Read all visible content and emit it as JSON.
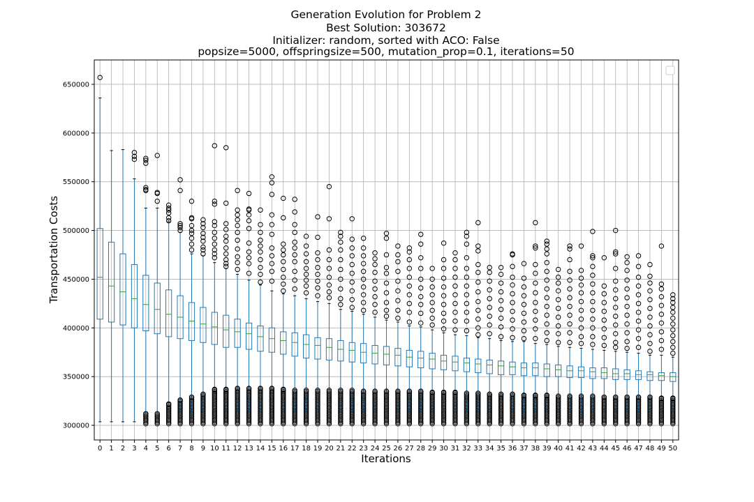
{
  "chart_data": {
    "type": "boxplot",
    "title": [
      "Generation Evolution for Problem 2",
      "Best Solution: 303672",
      "Initializer: random, sorted with ACO: False",
      "popsize=5000, offspringsize=500, mutation_prop=0.1, iterations=50"
    ],
    "xlabel": "Iterations",
    "ylabel": "Transportation Costs",
    "ylim": [
      285000,
      675000
    ],
    "yticks": [
      300000,
      350000,
      400000,
      450000,
      500000,
      550000,
      600000,
      650000
    ],
    "ytick_labels": [
      "300000",
      "350000",
      "400000",
      "450000",
      "500000",
      "550000",
      "600000",
      "650000"
    ],
    "grid": true,
    "legend": "top-right, empty",
    "colors": {
      "box": "#1f77b4",
      "median": "#2ca02c",
      "grid": "#b0b0b0",
      "flier": "#000000"
    },
    "categories": [
      "0",
      "1",
      "2",
      "3",
      "4",
      "5",
      "6",
      "7",
      "8",
      "9",
      "10",
      "11",
      "12",
      "13",
      "14",
      "15",
      "16",
      "17",
      "18",
      "19",
      "20",
      "21",
      "22",
      "23",
      "24",
      "25",
      "26",
      "27",
      "28",
      "29",
      "30",
      "31",
      "32",
      "33",
      "34",
      "35",
      "36",
      "37",
      "38",
      "39",
      "40",
      "41",
      "42",
      "43",
      "44",
      "45",
      "46",
      "47",
      "48",
      "49",
      "50"
    ],
    "whisker_low": [
      303672,
      303672,
      303672,
      303672,
      303672,
      303672,
      303672,
      303672,
      303672,
      303672,
      303672,
      303672,
      303672,
      303672,
      303672,
      303672,
      303672,
      303672,
      303672,
      303672,
      303672,
      303672,
      303672,
      303672,
      303672,
      303672,
      303672,
      303672,
      303672,
      303672,
      303672,
      303672,
      303672,
      303672,
      303672,
      303672,
      303672,
      303672,
      303672,
      303672,
      303672,
      303672,
      303672,
      303672,
      303672,
      303672,
      303672,
      303672,
      303672,
      303672,
      303672
    ],
    "q1": [
      409000,
      406000,
      403000,
      400000,
      397000,
      394000,
      391000,
      389000,
      387000,
      385000,
      383000,
      380000,
      380000,
      378000,
      376000,
      375000,
      373000,
      371000,
      369000,
      368000,
      367000,
      366000,
      365000,
      364000,
      363000,
      362000,
      361000,
      360000,
      359000,
      358000,
      357000,
      356000,
      355000,
      354000,
      353000,
      352000,
      352000,
      351000,
      351000,
      350000,
      350000,
      349000,
      349000,
      348000,
      348000,
      347000,
      347000,
      347000,
      346000,
      346000,
      345000
    ],
    "median": [
      452000,
      443000,
      437000,
      430000,
      424000,
      419000,
      414000,
      411000,
      407000,
      404000,
      401000,
      398000,
      396000,
      394000,
      391000,
      389000,
      387000,
      385000,
      383000,
      382000,
      380000,
      378000,
      377000,
      375000,
      374000,
      373000,
      372000,
      370000,
      369000,
      368000,
      366000,
      365000,
      364000,
      363000,
      362000,
      361000,
      360000,
      359000,
      359000,
      358000,
      357000,
      356000,
      356000,
      355000,
      354000,
      353000,
      353000,
      352000,
      352000,
      351000,
      350000
    ],
    "q3": [
      502000,
      488000,
      476000,
      465000,
      454000,
      446000,
      439000,
      433000,
      426000,
      421000,
      416000,
      413000,
      409000,
      405000,
      402000,
      400000,
      396000,
      395000,
      393000,
      390000,
      389000,
      387000,
      385000,
      384000,
      382000,
      381000,
      379000,
      377000,
      376000,
      374000,
      372000,
      371000,
      369000,
      368000,
      367000,
      366000,
      365000,
      364000,
      364000,
      363000,
      362000,
      361000,
      360000,
      359000,
      359000,
      358000,
      357000,
      356000,
      355000,
      354000,
      354000
    ],
    "whisker_high": [
      636000,
      582000,
      583000,
      553000,
      523000,
      523000,
      509000,
      498000,
      476000,
      474000,
      467000,
      461000,
      455000,
      449000,
      444000,
      438000,
      435000,
      433000,
      430000,
      427000,
      425000,
      419000,
      417000,
      414000,
      411000,
      408000,
      406000,
      402000,
      401000,
      398000,
      395000,
      393000,
      392000,
      390000,
      389000,
      387000,
      386000,
      386000,
      384000,
      383000,
      381000,
      380000,
      379000,
      378000,
      377000,
      376000,
      375000,
      374000,
      372000,
      372000,
      370000
    ],
    "fliers_low_band_top": [
      null,
      null,
      null,
      null,
      312000,
      312000,
      322000,
      326000,
      329000,
      332000,
      337000,
      337000,
      338000,
      338000,
      338000,
      338000,
      337000,
      336000,
      336000,
      336000,
      336000,
      336000,
      336000,
      335000,
      335000,
      335000,
      335000,
      335000,
      335000,
      334000,
      334000,
      334000,
      333000,
      333000,
      332000,
      332000,
      332000,
      331000,
      331000,
      331000,
      330000,
      330000,
      330000,
      330000,
      329000,
      329000,
      329000,
      329000,
      329000,
      328000,
      328000
    ],
    "fliers_high": [
      [
        657000
      ],
      [],
      [],
      [
        580000,
        576000,
        573000
      ],
      [
        574000,
        572000,
        569000,
        544000,
        542000,
        541000
      ],
      [
        577000,
        539000,
        538000,
        530000
      ],
      [
        526000,
        523000,
        521000,
        518000,
        513000,
        510000
      ],
      [
        552000,
        541000,
        507000,
        505000,
        503000,
        500000
      ],
      [
        530000,
        513000,
        512000,
        505000,
        500000,
        497000,
        492000,
        486000,
        480000
      ],
      [
        511000,
        507000,
        503000,
        497000,
        493000,
        489000,
        483000,
        480000,
        476000
      ],
      [
        587000,
        530000,
        527000,
        509000,
        505000,
        498000,
        492000,
        486000,
        480000,
        476000,
        472000
      ],
      [
        585000,
        528000,
        507000,
        501000,
        494000,
        489000,
        482000,
        476000,
        470000,
        466000,
        463000
      ],
      [
        541000,
        521000,
        516000,
        511000,
        505000,
        498000,
        490000,
        481000,
        473000,
        467000,
        460000
      ],
      [
        538000,
        522000,
        521000,
        516000,
        510000,
        502000,
        487000,
        478000,
        472000,
        466000,
        456000
      ],
      [
        521000,
        506000,
        498000,
        490000,
        484000,
        478000,
        470000,
        462000,
        455000,
        447000
      ],
      [
        555000,
        549000,
        537000,
        516000,
        506000,
        496000,
        482000,
        474000,
        466000,
        458000,
        448000
      ],
      [
        533000,
        513000,
        486000,
        480000,
        475000,
        468000,
        460000,
        452000,
        445000,
        438000
      ],
      [
        532000,
        519000,
        506000,
        498000,
        488000,
        482000,
        475000,
        468000,
        458000,
        449000,
        440000
      ],
      [
        494000,
        484000,
        476000,
        468000,
        461000,
        455000,
        449000,
        443000,
        436000
      ],
      [
        514000,
        493000,
        477000,
        470000,
        462000,
        455000,
        448000,
        441000,
        433000
      ],
      [
        545000,
        512000,
        480000,
        470000,
        461000,
        452000,
        444000,
        437000,
        431000
      ],
      [
        498000,
        494000,
        488000,
        480000,
        470000,
        460000,
        450000,
        440000,
        430000,
        424000
      ],
      [
        512000,
        491000,
        482000,
        474000,
        465000,
        456000,
        447000,
        438000,
        429000,
        421000
      ],
      [
        492000,
        482000,
        474000,
        466000,
        458000,
        450000,
        442000,
        434000,
        426000,
        418000
      ],
      [
        477000,
        471000,
        465000,
        457000,
        448000,
        440000,
        432000,
        424000,
        416000
      ],
      [
        497000,
        492000,
        475000,
        462000,
        456000,
        446000,
        436000,
        426000,
        418000,
        412000
      ],
      [
        484000,
        475000,
        468000,
        458000,
        448000,
        438000,
        428000,
        418000,
        410000
      ],
      [
        482000,
        478000,
        470000,
        461000,
        452000,
        443000,
        434000,
        425000,
        416000,
        406000
      ],
      [
        496000,
        486000,
        472000,
        461000,
        450000,
        441000,
        432000,
        424000,
        415000,
        405000
      ],
      [
        461000,
        450000,
        442000,
        434000,
        426000,
        418000,
        410000,
        403000
      ],
      [
        487000,
        470000,
        461000,
        451000,
        442000,
        433000,
        424000,
        415000,
        407000,
        399000
      ],
      [
        477000,
        470000,
        461000,
        452000,
        443000,
        434000,
        425000,
        416000,
        407000,
        398000
      ],
      [
        498000,
        494000,
        486000,
        472000,
        461000,
        452000,
        443000,
        434000,
        425000,
        416000,
        407000,
        397000
      ],
      [
        508000,
        484000,
        479000,
        465000,
        457000,
        447000,
        437000,
        427000,
        418000,
        409000,
        400000,
        393000
      ],
      [
        462000,
        457000,
        448000,
        439000,
        430000,
        421000,
        412000,
        403000,
        394000
      ],
      [
        462000,
        455000,
        446000,
        437000,
        428000,
        419000,
        410000,
        401000,
        391000
      ],
      [
        476000,
        475000,
        463000,
        452000,
        444000,
        435000,
        426000,
        417000,
        408000,
        399000,
        390000
      ],
      [
        466000,
        451000,
        442000,
        433000,
        424000,
        415000,
        406000,
        397000,
        389000
      ],
      [
        508000,
        484000,
        482000,
        465000,
        456000,
        446000,
        436000,
        426000,
        417000,
        408000,
        399000,
        389000
      ],
      [
        489000,
        486000,
        481000,
        476000,
        467000,
        458000,
        449000,
        440000,
        431000,
        422000,
        413000,
        404000,
        395000,
        387000
      ],
      [
        460000,
        452000,
        446000,
        438000,
        429000,
        420000,
        411000,
        402000,
        394000,
        385000
      ],
      [
        484000,
        481000,
        470000,
        458000,
        449000,
        440000,
        431000,
        422000,
        413000,
        404000,
        395000,
        385000
      ],
      [
        484000,
        459000,
        451000,
        444000,
        436000,
        427000,
        418000,
        409000,
        400000,
        391000,
        384000
      ],
      [
        499000,
        474000,
        472000,
        463000,
        454000,
        445000,
        436000,
        427000,
        418000,
        409000,
        400000,
        391000,
        383000
      ],
      [
        472000,
        443000,
        435000,
        426000,
        417000,
        408000,
        399000,
        390000,
        382000
      ],
      [
        500000,
        478000,
        476000,
        461000,
        448000,
        439000,
        430000,
        421000,
        412000,
        403000,
        394000,
        385000,
        380000
      ],
      [
        473000,
        467000,
        459000,
        449000,
        440000,
        431000,
        422000,
        413000,
        404000,
        395000,
        386000,
        379000
      ],
      [
        474000,
        463000,
        452000,
        443000,
        434000,
        425000,
        416000,
        407000,
        398000,
        389000,
        380000
      ],
      [
        465000,
        453000,
        446000,
        438000,
        429000,
        420000,
        411000,
        402000,
        393000,
        384000,
        376000
      ],
      [
        484000,
        445000,
        440000,
        432000,
        423000,
        414000,
        405000,
        396000,
        387000,
        378000
      ],
      [
        434000,
        430000,
        426000,
        421000,
        416000,
        410000,
        404000,
        398000,
        392000,
        386000,
        380000,
        374000
      ]
    ]
  }
}
